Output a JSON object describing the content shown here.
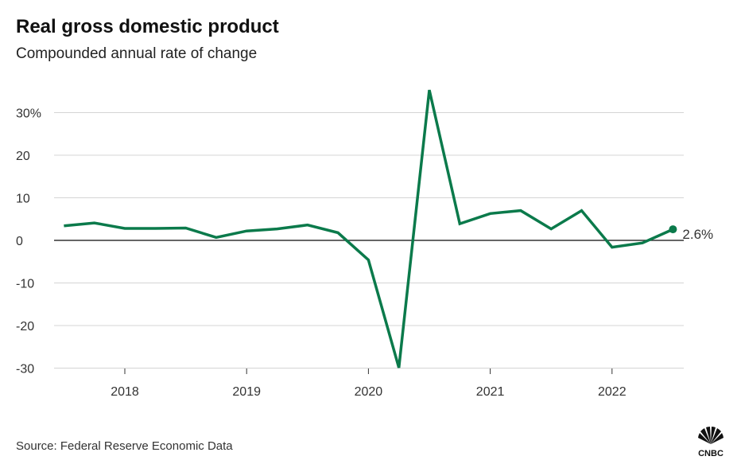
{
  "title": "Real gross domestic product",
  "subtitle": "Compounded annual rate of change",
  "source": "Source: Federal Reserve Economic Data",
  "logo_text": "CNBC",
  "colors": {
    "line": "#0b7a4b",
    "grid": "#d4d4d4",
    "zero": "#333333"
  },
  "chart_data": {
    "type": "line",
    "title": "Real gross domestic product",
    "subtitle": "Compounded annual rate of change",
    "xlabel": "",
    "ylabel": "",
    "ylim": [
      -30,
      30
    ],
    "xlim": [
      2017.45,
      2022.6
    ],
    "grid": true,
    "y_ticks": [
      {
        "value": 30,
        "label": "30%"
      },
      {
        "value": 20,
        "label": "20"
      },
      {
        "value": 10,
        "label": "10"
      },
      {
        "value": 0,
        "label": "0"
      },
      {
        "value": -10,
        "label": "-10"
      },
      {
        "value": -20,
        "label": "-20"
      },
      {
        "value": -30,
        "label": "-30"
      }
    ],
    "x_ticks": [
      {
        "value": 2018,
        "label": "2018"
      },
      {
        "value": 2019,
        "label": "2019"
      },
      {
        "value": 2020,
        "label": "2020"
      },
      {
        "value": 2021,
        "label": "2021"
      },
      {
        "value": 2022,
        "label": "2022"
      }
    ],
    "series": [
      {
        "name": "Real GDP",
        "x": [
          2017.5,
          2017.75,
          2018.0,
          2018.25,
          2018.5,
          2018.75,
          2019.0,
          2019.25,
          2019.5,
          2019.75,
          2020.0,
          2020.25,
          2020.5,
          2020.75,
          2021.0,
          2021.25,
          2021.5,
          2021.75,
          2022.0,
          2022.25,
          2022.5
        ],
        "y": [
          3.4,
          4.1,
          2.8,
          2.8,
          2.9,
          0.7,
          2.2,
          2.7,
          3.6,
          1.8,
          -4.6,
          -29.9,
          35.3,
          3.9,
          6.3,
          7.0,
          2.7,
          7.0,
          -1.6,
          -0.6,
          2.6
        ]
      }
    ],
    "annotations": [
      {
        "x": 2022.5,
        "y": 2.6,
        "label": "2.6%"
      }
    ]
  }
}
